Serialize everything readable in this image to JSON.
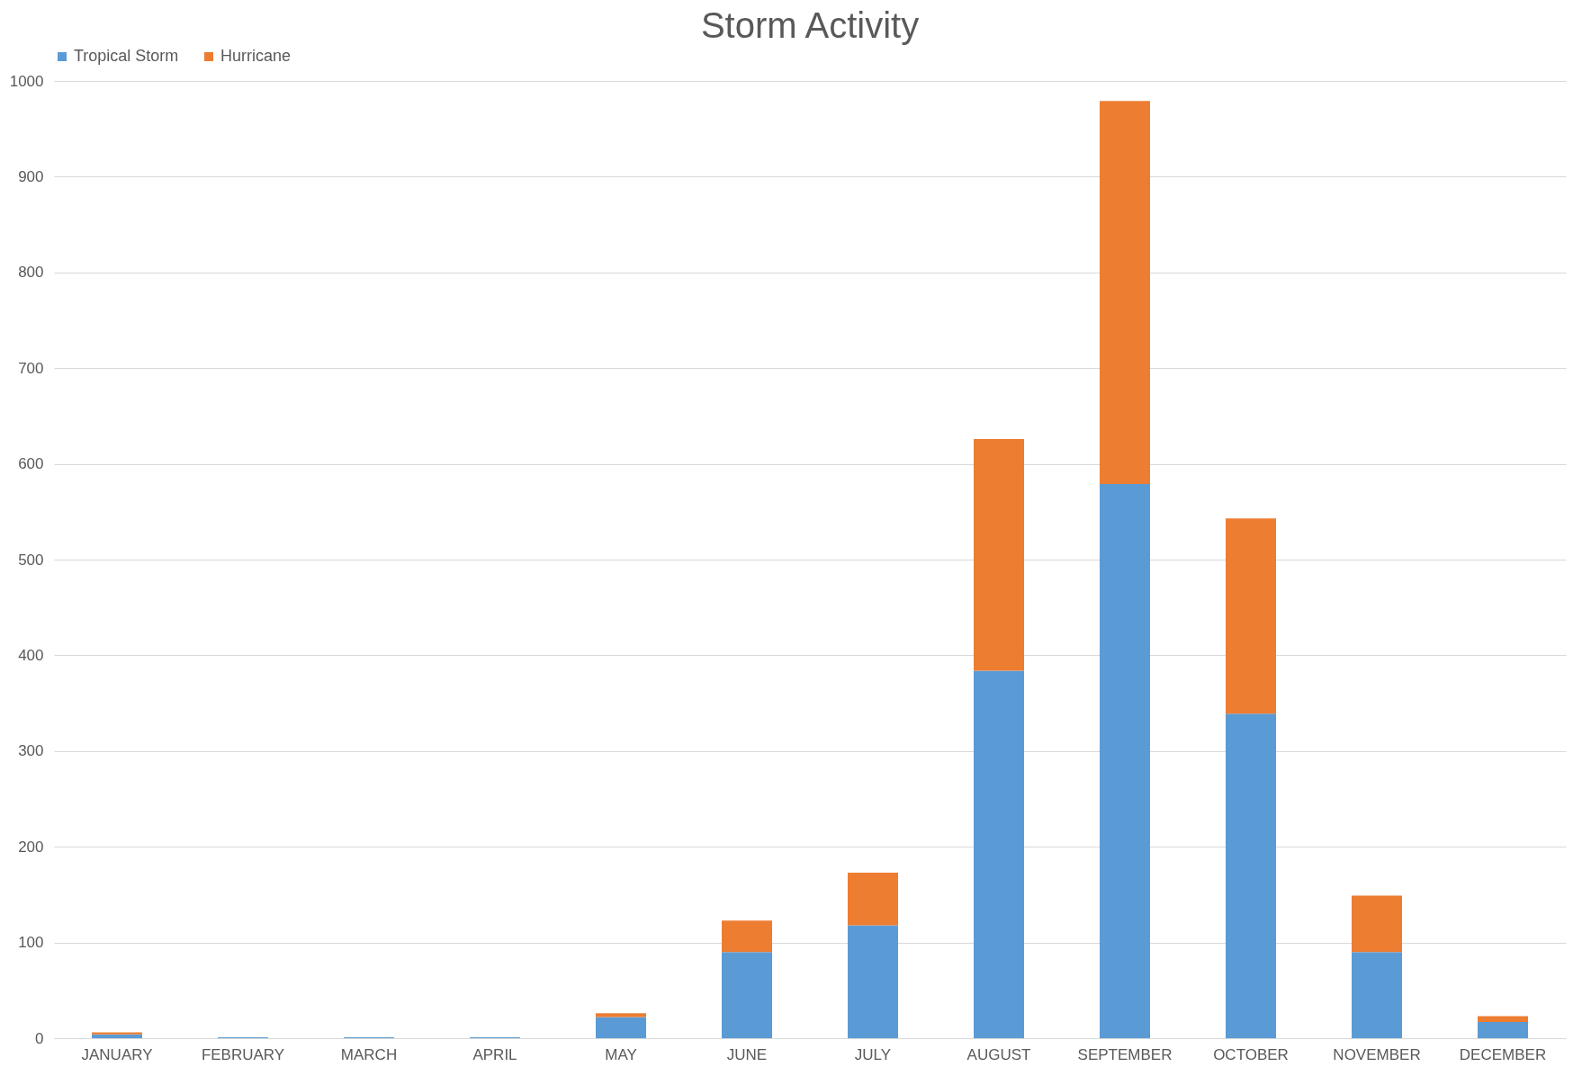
{
  "chart_data": {
    "type": "bar",
    "title": "Storm Activity",
    "categories": [
      "JANUARY",
      "FEBRUARY",
      "MARCH",
      "APRIL",
      "MAY",
      "JUNE",
      "JULY",
      "AUGUST",
      "SEPTEMBER",
      "OCTOBER",
      "NOVEMBER",
      "DECEMBER"
    ],
    "series": [
      {
        "name": "Tropical Storm",
        "color": "#5b9bd5",
        "values": [
          4,
          1,
          1,
          1,
          22,
          90,
          118,
          384,
          579,
          339,
          90,
          17
        ]
      },
      {
        "name": "Hurricane",
        "color": "#ed7d31",
        "values": [
          2,
          0,
          0,
          0,
          4,
          33,
          55,
          242,
          400,
          204,
          59,
          6
        ]
      }
    ],
    "stacked": true,
    "ylim": [
      0,
      1000
    ],
    "yticks": [
      0,
      100,
      200,
      300,
      400,
      500,
      600,
      700,
      800,
      900,
      1000
    ],
    "grid": "y",
    "legend": "top"
  }
}
